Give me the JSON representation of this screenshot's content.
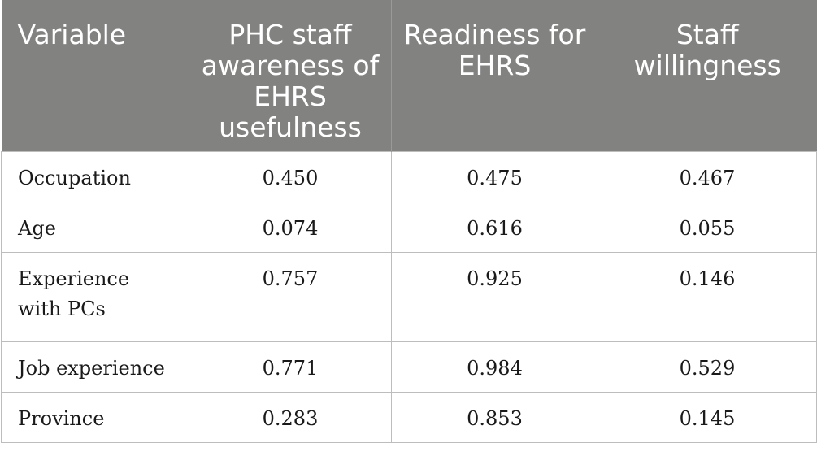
{
  "table": {
    "headers": [
      "Variable",
      "PHC staff awareness of EHRS usefulness",
      "Readiness for EHRS",
      "Staff willingness"
    ],
    "rows": [
      [
        "Occupation",
        "0.450",
        "0.475",
        "0.467"
      ],
      [
        "Age",
        "0.074",
        "0.616",
        "0.055"
      ],
      [
        "Experience with PCs",
        "0.757",
        "0.925",
        "0.146"
      ],
      [
        "Job experience",
        "0.771",
        "0.984",
        "0.529"
      ],
      [
        "Province",
        "0.283",
        "0.853",
        "0.145"
      ]
    ]
  }
}
